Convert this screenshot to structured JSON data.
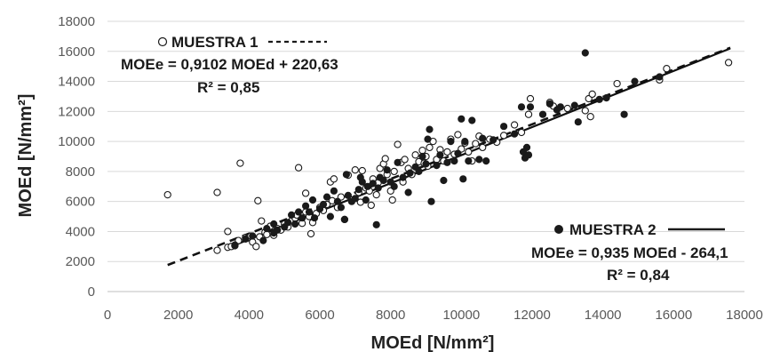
{
  "chart_data": {
    "type": "scatter",
    "xlabel": "MOEd [N/mm²]",
    "ylabel": "MOEd [N/mm²]",
    "xlim": [
      0,
      18000
    ],
    "ylim": [
      0,
      18000
    ],
    "x_ticks": [
      "0",
      "2000",
      "4000",
      "6000",
      "8000",
      "10000",
      "12000",
      "14000",
      "16000",
      "18000"
    ],
    "y_ticks": [
      "0",
      "2000",
      "4000",
      "6000",
      "8000",
      "10000",
      "12000",
      "14000",
      "16000",
      "18000"
    ],
    "grid": "horizontal",
    "series": [
      {
        "name": "MUESTRA 1",
        "marker": "open-circle",
        "equation": "MOEe = 0,9102 MOEd + 220,63",
        "r2": "R² = 0,85",
        "trend": {
          "slope": 0.9102,
          "intercept": 220.63,
          "x_range": [
            1700,
            17600
          ],
          "style": "dashed"
        },
        "points": [
          [
            1700,
            6450
          ],
          [
            3100,
            2750
          ],
          [
            3100,
            6600
          ],
          [
            3400,
            2950
          ],
          [
            3400,
            4000
          ],
          [
            3500,
            3000
          ],
          [
            3600,
            3050
          ],
          [
            3700,
            3400
          ],
          [
            3750,
            8550
          ],
          [
            3900,
            3600
          ],
          [
            3950,
            3550
          ],
          [
            4050,
            3700
          ],
          [
            4100,
            3300
          ],
          [
            4200,
            3000
          ],
          [
            4250,
            6050
          ],
          [
            4300,
            3650
          ],
          [
            4350,
            4700
          ],
          [
            4450,
            3950
          ],
          [
            4500,
            3800
          ],
          [
            4600,
            4350
          ],
          [
            4700,
            3750
          ],
          [
            4800,
            4200
          ],
          [
            4900,
            4100
          ],
          [
            5000,
            4500
          ],
          [
            5100,
            4300
          ],
          [
            5200,
            4700
          ],
          [
            5300,
            4900
          ],
          [
            5350,
            5100
          ],
          [
            5400,
            8250
          ],
          [
            5500,
            4550
          ],
          [
            5600,
            5300
          ],
          [
            5600,
            6550
          ],
          [
            5700,
            5000
          ],
          [
            5750,
            3850
          ],
          [
            5800,
            4600
          ],
          [
            5900,
            5200
          ],
          [
            6000,
            5600
          ],
          [
            6100,
            5400
          ],
          [
            6200,
            5800
          ],
          [
            6300,
            7300
          ],
          [
            6350,
            6050
          ],
          [
            6400,
            7500
          ],
          [
            6500,
            5600
          ],
          [
            6600,
            6300
          ],
          [
            6700,
            4800
          ],
          [
            6800,
            7750
          ],
          [
            6900,
            6100
          ],
          [
            7000,
            8100
          ],
          [
            7100,
            6600
          ],
          [
            7150,
            5950
          ],
          [
            7200,
            8050
          ],
          [
            7300,
            6900
          ],
          [
            7400,
            6700
          ],
          [
            7450,
            5750
          ],
          [
            7500,
            7500
          ],
          [
            7600,
            6450
          ],
          [
            7650,
            7250
          ],
          [
            7700,
            8200
          ],
          [
            7800,
            8500
          ],
          [
            7850,
            8850
          ],
          [
            7900,
            7800
          ],
          [
            8000,
            6700
          ],
          [
            8050,
            6100
          ],
          [
            8100,
            8000
          ],
          [
            8200,
            9800
          ],
          [
            8300,
            8600
          ],
          [
            8350,
            7300
          ],
          [
            8400,
            8800
          ],
          [
            8500,
            8200
          ],
          [
            8600,
            7800
          ],
          [
            8700,
            9100
          ],
          [
            8800,
            8650
          ],
          [
            8900,
            9400
          ],
          [
            8950,
            8550
          ],
          [
            9000,
            9000
          ],
          [
            9050,
            8350
          ],
          [
            9100,
            9600
          ],
          [
            9200,
            10000
          ],
          [
            9300,
            8800
          ],
          [
            9400,
            9450
          ],
          [
            9500,
            8700
          ],
          [
            9600,
            9300
          ],
          [
            9700,
            10150
          ],
          [
            9800,
            9150
          ],
          [
            9900,
            10450
          ],
          [
            10000,
            9500
          ],
          [
            10100,
            9900
          ],
          [
            10200,
            9300
          ],
          [
            10300,
            8700
          ],
          [
            10400,
            9850
          ],
          [
            10500,
            10350
          ],
          [
            10600,
            9600
          ],
          [
            10800,
            10150
          ],
          [
            11000,
            9950
          ],
          [
            11200,
            10400
          ],
          [
            11500,
            11100
          ],
          [
            11700,
            10600
          ],
          [
            11900,
            11800
          ],
          [
            11950,
            12850
          ],
          [
            12500,
            12600
          ],
          [
            12600,
            12350
          ],
          [
            13000,
            12200
          ],
          [
            13500,
            12050
          ],
          [
            13600,
            12850
          ],
          [
            13650,
            11650
          ],
          [
            13700,
            13150
          ],
          [
            14400,
            13850
          ],
          [
            15600,
            14100
          ],
          [
            15800,
            14850
          ],
          [
            17550,
            15250
          ]
        ]
      },
      {
        "name": "MUESTRA 2",
        "marker": "filled-circle",
        "equation": "MOEe = 0,935 MOEd - 264,1",
        "r2": "R² = 0,84",
        "trend": {
          "slope": 0.935,
          "intercept": -264.1,
          "x_range": [
            3500,
            17600
          ],
          "style": "solid"
        },
        "points": [
          [
            3600,
            3100
          ],
          [
            3900,
            3500
          ],
          [
            4100,
            3700
          ],
          [
            4400,
            3400
          ],
          [
            4500,
            4200
          ],
          [
            4700,
            3900
          ],
          [
            4700,
            4500
          ],
          [
            4800,
            4100
          ],
          [
            5000,
            4300
          ],
          [
            5100,
            4600
          ],
          [
            5200,
            5100
          ],
          [
            5300,
            4500
          ],
          [
            5400,
            5300
          ],
          [
            5500,
            4900
          ],
          [
            5600,
            5700
          ],
          [
            5700,
            5300
          ],
          [
            5800,
            6100
          ],
          [
            5850,
            4900
          ],
          [
            6000,
            5500
          ],
          [
            6100,
            5800
          ],
          [
            6200,
            6300
          ],
          [
            6300,
            5000
          ],
          [
            6400,
            6700
          ],
          [
            6500,
            6000
          ],
          [
            6600,
            5600
          ],
          [
            6700,
            4800
          ],
          [
            6750,
            7800
          ],
          [
            6800,
            6400
          ],
          [
            6900,
            6000
          ],
          [
            7000,
            6200
          ],
          [
            7100,
            6800
          ],
          [
            7150,
            7600
          ],
          [
            7200,
            7300
          ],
          [
            7300,
            6100
          ],
          [
            7350,
            7000
          ],
          [
            7500,
            7200
          ],
          [
            7600,
            4450
          ],
          [
            7650,
            6900
          ],
          [
            7700,
            7600
          ],
          [
            7800,
            7400
          ],
          [
            7900,
            8100
          ],
          [
            8000,
            7300
          ],
          [
            8100,
            7000
          ],
          [
            8200,
            8600
          ],
          [
            8350,
            7600
          ],
          [
            8500,
            6600
          ],
          [
            8550,
            7900
          ],
          [
            8700,
            8300
          ],
          [
            8800,
            8000
          ],
          [
            8900,
            9000
          ],
          [
            9000,
            8500
          ],
          [
            9050,
            10150
          ],
          [
            9100,
            10800
          ],
          [
            9150,
            6000
          ],
          [
            9300,
            8400
          ],
          [
            9400,
            9100
          ],
          [
            9500,
            7400
          ],
          [
            9600,
            8600
          ],
          [
            9700,
            10000
          ],
          [
            9800,
            8700
          ],
          [
            9900,
            9200
          ],
          [
            10000,
            11500
          ],
          [
            10050,
            7500
          ],
          [
            10100,
            10000
          ],
          [
            10200,
            8700
          ],
          [
            10300,
            11400
          ],
          [
            10500,
            8800
          ],
          [
            10600,
            10200
          ],
          [
            10700,
            8700
          ],
          [
            10900,
            10100
          ],
          [
            11200,
            11000
          ],
          [
            11500,
            10500
          ],
          [
            11700,
            12300
          ],
          [
            11750,
            9300
          ],
          [
            11800,
            8900
          ],
          [
            11850,
            9600
          ],
          [
            11900,
            9100
          ],
          [
            11950,
            12300
          ],
          [
            12300,
            11800
          ],
          [
            12500,
            12500
          ],
          [
            12700,
            12100
          ],
          [
            12800,
            12300
          ],
          [
            13200,
            12400
          ],
          [
            13300,
            11300
          ],
          [
            13500,
            15900
          ],
          [
            13900,
            12800
          ],
          [
            14100,
            12900
          ],
          [
            14600,
            11800
          ],
          [
            14900,
            14000
          ],
          [
            15600,
            14300
          ]
        ]
      }
    ]
  }
}
